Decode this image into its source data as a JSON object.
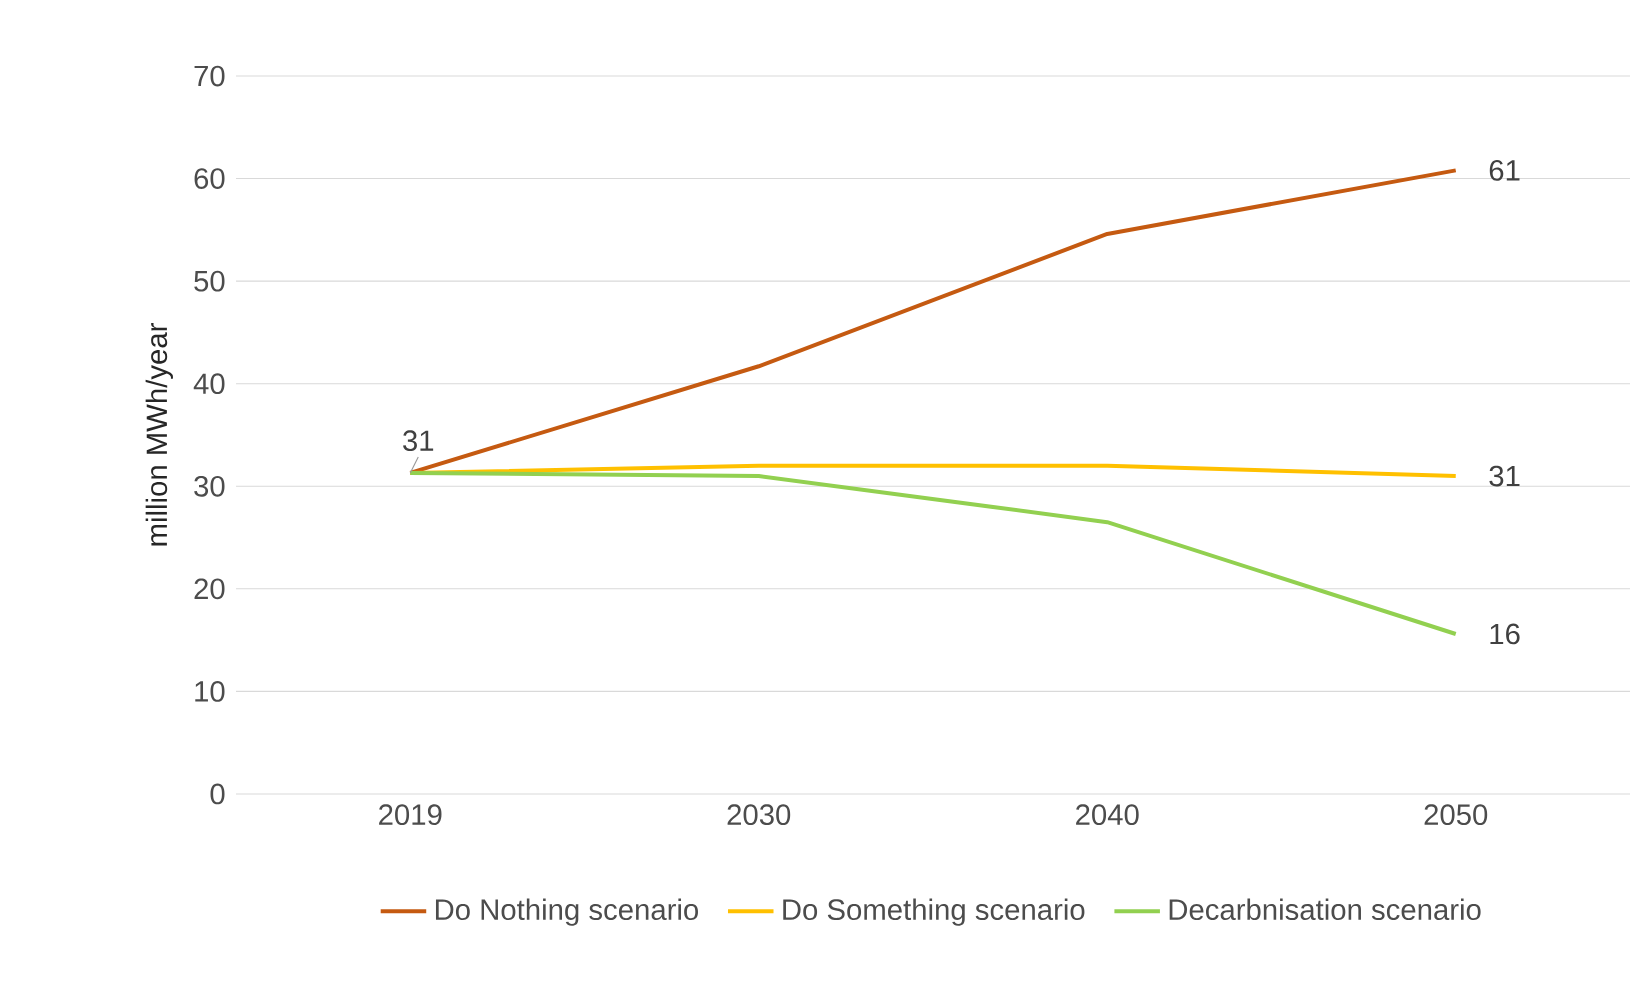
{
  "chart_data": {
    "type": "line",
    "ylabel": "million MWh/year",
    "categories": [
      "2019",
      "2030",
      "2040",
      "2050"
    ],
    "series": [
      {
        "name": "Do Nothing scenario",
        "color": "#c55a11",
        "values": [
          31.3,
          41.7,
          54.6,
          60.8
        ],
        "value_labels": [
          "31",
          null,
          null,
          "61"
        ]
      },
      {
        "name": "Do Something scenario",
        "color": "#ffc000",
        "values": [
          31.3,
          32.0,
          32.0,
          31.0
        ],
        "value_labels": [
          null,
          null,
          null,
          "31"
        ]
      },
      {
        "name": "Decarbnisation scenario",
        "color": "#92d050",
        "values": [
          31.3,
          31.0,
          26.5,
          15.6
        ],
        "value_labels": [
          null,
          null,
          null,
          "16"
        ]
      }
    ],
    "ylim": [
      0,
      70
    ],
    "yticks": [
      0,
      10,
      20,
      30,
      40,
      50,
      60,
      70
    ],
    "grid": "y",
    "legend": "bottom",
    "marker": "none"
  }
}
